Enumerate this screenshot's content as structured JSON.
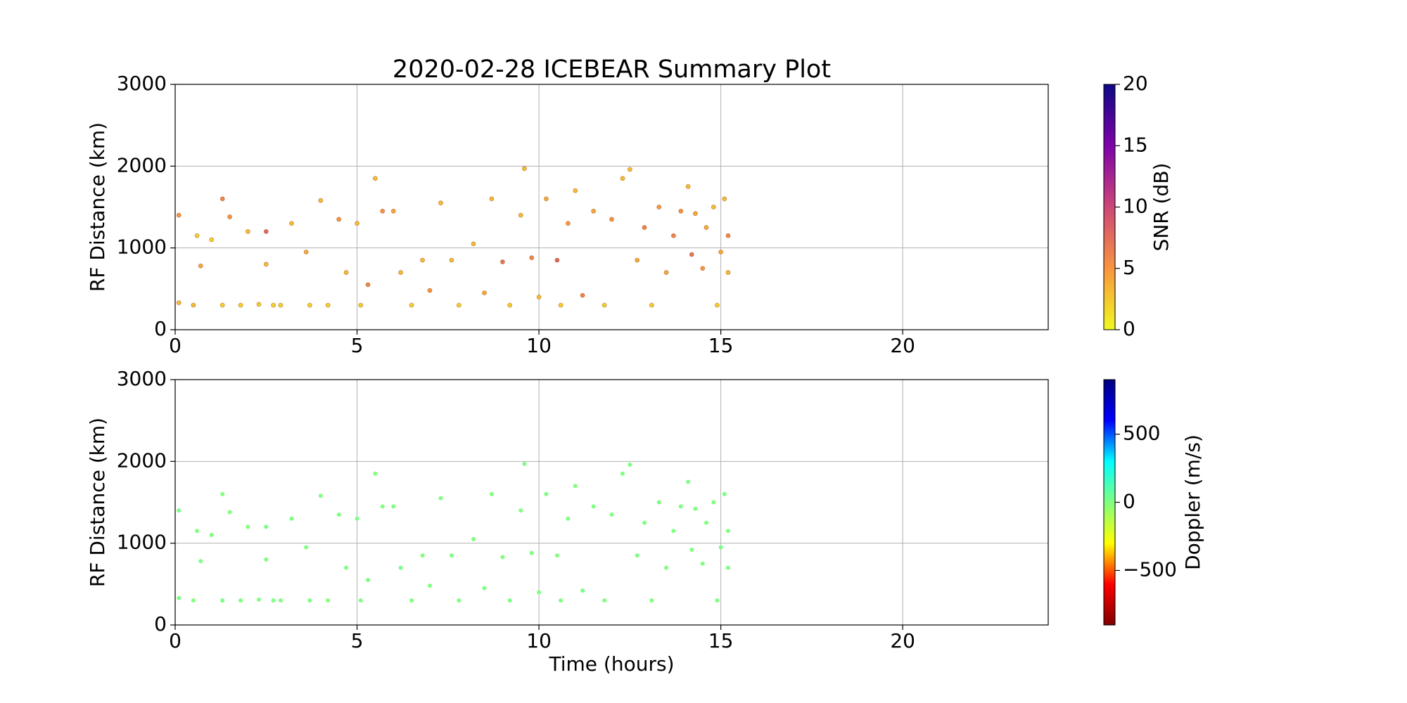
{
  "chart_data": [
    {
      "type": "scatter",
      "title": "2020-02-28 ICEBEAR Summary Plot",
      "ylabel": "RF Distance (km)",
      "xlim": [
        0,
        24
      ],
      "ylim": [
        0,
        3000
      ],
      "xticks": [
        0,
        5,
        10,
        15,
        20
      ],
      "yticks": [
        0,
        1000,
        2000,
        3000
      ],
      "grid": true,
      "x": [
        0.1,
        0.1,
        0.5,
        0.6,
        0.7,
        1.0,
        1.3,
        1.3,
        1.5,
        1.8,
        2.0,
        2.3,
        2.5,
        2.5,
        2.7,
        2.9,
        3.2,
        3.6,
        3.7,
        4.0,
        4.2,
        4.5,
        4.7,
        5.0,
        5.1,
        5.3,
        5.5,
        5.7,
        6.0,
        6.2,
        6.5,
        6.8,
        7.0,
        7.3,
        7.6,
        7.8,
        8.2,
        8.5,
        8.7,
        9.0,
        9.2,
        9.5,
        9.6,
        9.8,
        10.0,
        10.2,
        10.5,
        10.6,
        10.8,
        11.0,
        11.2,
        11.5,
        11.8,
        12.0,
        12.3,
        12.5,
        12.7,
        12.9,
        13.1,
        13.3,
        13.5,
        13.7,
        13.9,
        14.1,
        14.2,
        14.3,
        14.5,
        14.6,
        14.8,
        14.9,
        15.0,
        15.1,
        15.2,
        15.2
      ],
      "y": [
        1400,
        330,
        300,
        1150,
        780,
        1100,
        1600,
        300,
        1380,
        300,
        1200,
        310,
        1200,
        800,
        300,
        300,
        1300,
        950,
        300,
        1580,
        300,
        1350,
        700,
        1300,
        300,
        550,
        1850,
        1450,
        1450,
        700,
        300,
        850,
        480,
        1550,
        850,
        300,
        1050,
        450,
        1600,
        830,
        300,
        1400,
        1970,
        880,
        400,
        1600,
        850,
        300,
        1300,
        1700,
        420,
        1450,
        300,
        1350,
        1850,
        1960,
        850,
        1250,
        300,
        1500,
        700,
        1150,
        1450,
        1750,
        920,
        1420,
        750,
        1250,
        1500,
        300,
        950,
        1600,
        1150,
        700
      ],
      "c": [
        5,
        3,
        3,
        2,
        4,
        2,
        6,
        2,
        5,
        2,
        3,
        2,
        8,
        3,
        2,
        2,
        3,
        4,
        2,
        3,
        2,
        5,
        3,
        3,
        2,
        6,
        3,
        5,
        4,
        3,
        2,
        3,
        5,
        3,
        3,
        2,
        3,
        4,
        3,
        7,
        2,
        3,
        3,
        6,
        3,
        4,
        8,
        2,
        5,
        3,
        6,
        4,
        2,
        5,
        3,
        3,
        4,
        6,
        2,
        5,
        4,
        6,
        5,
        3,
        7,
        4,
        5,
        4,
        3,
        2,
        4,
        3,
        6,
        3
      ],
      "colorbar": {
        "label": "SNR (dB)",
        "lim": [
          0,
          20
        ],
        "ticks": [
          0,
          5,
          10,
          15,
          20
        ],
        "colormap": "plasma_r"
      }
    },
    {
      "type": "scatter",
      "xlabel": "Time (hours)",
      "ylabel": "RF Distance (km)",
      "xlim": [
        0,
        24
      ],
      "ylim": [
        0,
        3000
      ],
      "xticks": [
        0,
        5,
        10,
        15,
        20
      ],
      "yticks": [
        0,
        1000,
        2000,
        3000
      ],
      "grid": true,
      "x": [
        0.1,
        0.1,
        0.5,
        0.6,
        0.7,
        1.0,
        1.3,
        1.3,
        1.5,
        1.8,
        2.0,
        2.3,
        2.5,
        2.5,
        2.7,
        2.9,
        3.2,
        3.6,
        3.7,
        4.0,
        4.2,
        4.5,
        4.7,
        5.0,
        5.1,
        5.3,
        5.5,
        5.7,
        6.0,
        6.2,
        6.5,
        6.8,
        7.0,
        7.3,
        7.6,
        7.8,
        8.2,
        8.5,
        8.7,
        9.0,
        9.2,
        9.5,
        9.6,
        9.8,
        10.0,
        10.2,
        10.5,
        10.6,
        10.8,
        11.0,
        11.2,
        11.5,
        11.8,
        12.0,
        12.3,
        12.5,
        12.7,
        12.9,
        13.1,
        13.3,
        13.5,
        13.7,
        13.9,
        14.1,
        14.2,
        14.3,
        14.5,
        14.6,
        14.8,
        14.9,
        15.0,
        15.1,
        15.2,
        15.2
      ],
      "y": [
        1400,
        330,
        300,
        1150,
        780,
        1100,
        1600,
        300,
        1380,
        300,
        1200,
        310,
        1200,
        800,
        300,
        300,
        1300,
        950,
        300,
        1580,
        300,
        1350,
        700,
        1300,
        300,
        550,
        1850,
        1450,
        1450,
        700,
        300,
        850,
        480,
        1550,
        850,
        300,
        1050,
        450,
        1600,
        830,
        300,
        1400,
        1970,
        880,
        400,
        1600,
        850,
        300,
        1300,
        1700,
        420,
        1450,
        300,
        1350,
        1850,
        1960,
        850,
        1250,
        300,
        1500,
        700,
        1150,
        1450,
        1750,
        920,
        1420,
        750,
        1250,
        1500,
        300,
        950,
        1600,
        1150,
        700
      ],
      "c": [
        10,
        5,
        -10,
        0,
        15,
        5,
        -5,
        10,
        0,
        5,
        -10,
        0,
        20,
        5,
        0,
        -5,
        5,
        0,
        10,
        0,
        -15,
        5,
        0,
        10,
        0,
        5,
        -5,
        0,
        5,
        10,
        0,
        -10,
        5,
        0,
        5,
        0,
        10,
        5,
        0,
        -5,
        5,
        0,
        5,
        10,
        0,
        5,
        -10,
        0,
        5,
        0,
        10,
        5,
        0,
        -5,
        5,
        0,
        10,
        5,
        0,
        5,
        -5,
        0,
        10,
        5,
        0,
        5,
        -5,
        0,
        5,
        0,
        10,
        5,
        0,
        5
      ],
      "colorbar": {
        "label": "Doppler (m/s)",
        "lim": [
          -900,
          900
        ],
        "ticks": [
          {
            "value": -500,
            "label": "−500"
          },
          0,
          500
        ],
        "colormap": "jet_r"
      }
    }
  ]
}
